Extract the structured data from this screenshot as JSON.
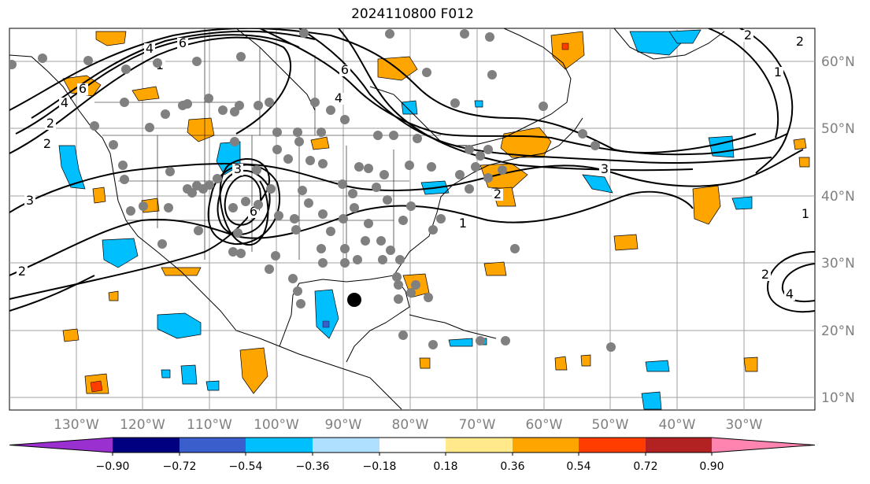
{
  "title": "2024110800 F012",
  "map": {
    "lon_range": [
      -137,
      -16
    ],
    "lat_range": [
      8,
      65
    ],
    "lon_labels": [
      "130°W",
      "120°W",
      "110°W",
      "100°W",
      "90°W",
      "80°W",
      "70°W",
      "60°W",
      "50°W",
      "40°W",
      "30°W"
    ],
    "lat_labels": [
      "60°N",
      "50°N",
      "40°N",
      "30°N",
      "20°N",
      "10°N"
    ],
    "contour_labels": [
      "4",
      "6",
      "1",
      "6",
      "4",
      "2",
      "4",
      "6",
      "2",
      "3",
      "2",
      "3",
      "6",
      "1",
      "2",
      "3",
      "1",
      "1",
      "2",
      "4",
      "2",
      "2"
    ],
    "marker": "large-black-dot",
    "station_marker_color": "#808080"
  },
  "colorbar": {
    "ticks": [
      "−0.90",
      "−0.72",
      "−0.54",
      "−0.36",
      "−0.18",
      "0.18",
      "0.36",
      "0.54",
      "0.72",
      "0.90"
    ],
    "colors": [
      "#9b30d0",
      "#000080",
      "#3a5fcd",
      "#00bfff",
      "#b0e0ff",
      "#ffffff",
      "#ffe98a",
      "#ffa500",
      "#ff3d00",
      "#b22222",
      "#ff85b0"
    ]
  }
}
